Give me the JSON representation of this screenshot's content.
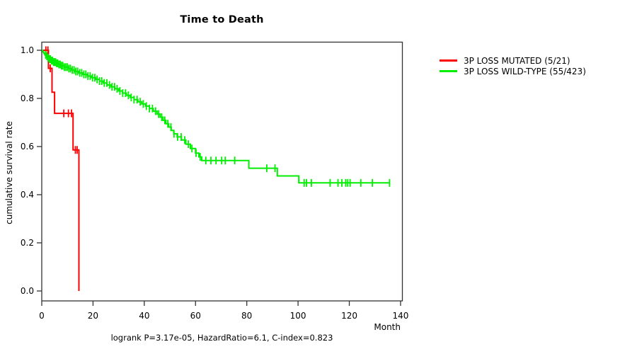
{
  "chart_data": {
    "type": "line",
    "subtype": "kaplan-meier-step",
    "title": "Time to Death",
    "xlabel": "Month",
    "ylabel": "cumulative survival rate",
    "footnote": "logrank P=3.17e-05, HazardRatio=6.1, C-index=0.823",
    "xlim": [
      0,
      140
    ],
    "ylim": [
      0.0,
      1.0
    ],
    "x_ticks": [
      0,
      20,
      40,
      60,
      80,
      100,
      120,
      140
    ],
    "x_tick_labels": [
      "0",
      "20",
      "40",
      "60",
      "80",
      "100",
      "120",
      "140"
    ],
    "y_ticks": [
      0.0,
      0.2,
      0.4,
      0.6,
      0.8,
      1.0
    ],
    "y_tick_labels": [
      "0.0",
      "0.2",
      "0.4",
      "0.6",
      "0.8",
      "1.0"
    ],
    "grid": false,
    "legend_position": "right-outside",
    "axis_color": "#333333",
    "text_color": "#000000",
    "background_color": "#ffffff",
    "series": [
      {
        "id": "mutated",
        "name": "3P LOSS MUTATED (5/21)",
        "color": "#ff0000",
        "start": [
          0,
          1.0
        ],
        "drops": [
          [
            2.6,
            0.925
          ],
          [
            4.0,
            0.826
          ],
          [
            5.0,
            0.738
          ],
          [
            12.2,
            0.586
          ],
          [
            14.5,
            0.0
          ]
        ],
        "end_time": 14.5,
        "censor_times": [
          1.6,
          2.4,
          3.3,
          8.6,
          10.4,
          11.6,
          13.1,
          13.8
        ]
      },
      {
        "id": "wild-type",
        "name": "3P LOSS WILD-TYPE (55/423)",
        "color": "#00ee00",
        "start": [
          0,
          1.0
        ],
        "drops": [
          [
            0.4,
            0.993
          ],
          [
            0.8,
            0.987
          ],
          [
            1.2,
            0.981
          ],
          [
            1.7,
            0.975
          ],
          [
            2.2,
            0.969
          ],
          [
            2.8,
            0.963
          ],
          [
            3.6,
            0.957
          ],
          [
            4.5,
            0.951
          ],
          [
            5.5,
            0.946
          ],
          [
            6.5,
            0.941
          ],
          [
            7.5,
            0.936
          ],
          [
            8.8,
            0.93
          ],
          [
            10.2,
            0.924
          ],
          [
            11.6,
            0.918
          ],
          [
            13.0,
            0.912
          ],
          [
            14.5,
            0.906
          ],
          [
            16.0,
            0.9
          ],
          [
            17.8,
            0.893
          ],
          [
            19.4,
            0.886
          ],
          [
            21.0,
            0.879
          ],
          [
            22.5,
            0.872
          ],
          [
            24.0,
            0.864
          ],
          [
            25.5,
            0.856
          ],
          [
            27.0,
            0.848
          ],
          [
            28.5,
            0.84
          ],
          [
            30.0,
            0.831
          ],
          [
            31.5,
            0.822
          ],
          [
            33.0,
            0.813
          ],
          [
            34.5,
            0.804
          ],
          [
            36.0,
            0.795
          ],
          [
            37.5,
            0.786
          ],
          [
            39.0,
            0.777
          ],
          [
            40.5,
            0.768
          ],
          [
            42.0,
            0.758
          ],
          [
            43.5,
            0.747
          ],
          [
            45.0,
            0.735
          ],
          [
            46.2,
            0.722
          ],
          [
            47.3,
            0.709
          ],
          [
            48.4,
            0.695
          ],
          [
            49.5,
            0.681
          ],
          [
            50.5,
            0.667
          ],
          [
            51.5,
            0.653
          ],
          [
            52.8,
            0.64
          ],
          [
            54.5,
            0.627
          ],
          [
            56.2,
            0.61
          ],
          [
            58.0,
            0.592
          ],
          [
            60.0,
            0.573
          ],
          [
            61.3,
            0.557
          ],
          [
            62.4,
            0.542
          ],
          [
            80.8,
            0.51
          ],
          [
            91.9,
            0.478
          ],
          [
            100.3,
            0.449
          ]
        ],
        "end_time": 135.8,
        "censor_times": [
          1.5,
          2.0,
          2.5,
          3.0,
          3.4,
          3.8,
          4.2,
          4.6,
          5.0,
          5.4,
          5.8,
          6.2,
          6.7,
          7.2,
          7.7,
          8.2,
          8.8,
          9.4,
          10.0,
          10.6,
          11.2,
          11.9,
          12.6,
          13.3,
          14.0,
          14.8,
          15.6,
          16.4,
          17.2,
          18.0,
          18.9,
          19.8,
          20.7,
          21.6,
          22.5,
          23.4,
          24.4,
          25.4,
          26.4,
          27.4,
          28.4,
          29.4,
          30.5,
          31.6,
          32.7,
          33.8,
          34.9,
          36.0,
          37.2,
          38.4,
          39.6,
          40.8,
          42.0,
          43.2,
          44.4,
          45.6,
          46.8,
          48.0,
          49.2,
          50.4,
          51.6,
          53.0,
          54.4,
          55.8,
          57.2,
          58.6,
          60.2,
          61.8,
          64.0,
          66.0,
          68.0,
          70.2,
          71.6,
          75.3,
          87.8,
          91.0,
          102.4,
          103.3,
          105.2,
          112.5,
          115.6,
          117.1,
          118.6,
          119.4,
          120.3,
          124.5,
          129.0,
          135.7
        ]
      }
    ]
  }
}
